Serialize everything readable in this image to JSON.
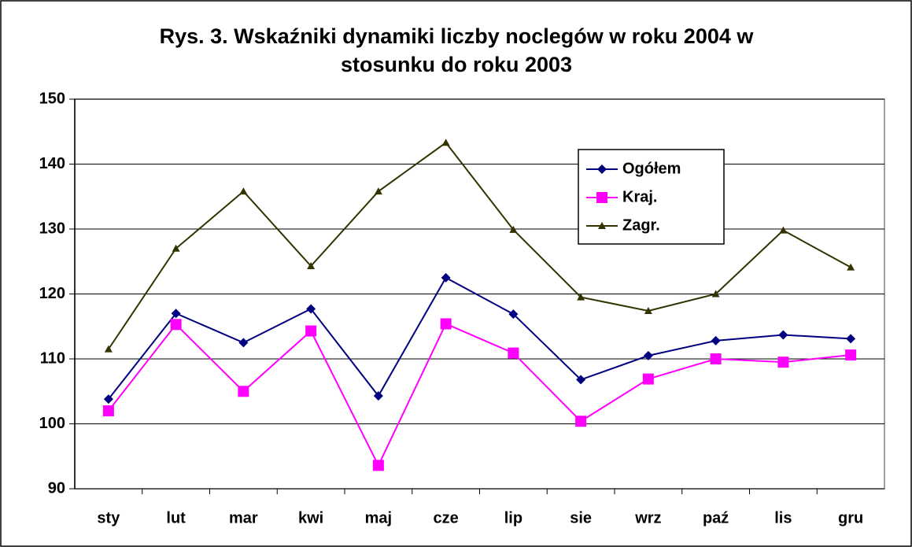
{
  "chart_data": {
    "type": "line",
    "title": "Rys. 3. Wskaźniki dynamiki liczby noclegów w roku 2004 w stosunku do roku 2003",
    "categories": [
      "sty",
      "lut",
      "mar",
      "kwi",
      "maj",
      "cze",
      "lip",
      "sie",
      "wrz",
      "paź",
      "lis",
      "gru"
    ],
    "series": [
      {
        "name": "Ogółem",
        "color": "#000080",
        "marker": "diamond",
        "values": [
          103.8,
          117,
          112.5,
          117.7,
          104.3,
          122.5,
          116.9,
          106.8,
          110.5,
          112.8,
          113.7,
          113.1
        ]
      },
      {
        "name": "Kraj.",
        "color": "#ff00ff",
        "marker": "square",
        "values": [
          102,
          115.3,
          105,
          114.3,
          93.6,
          115.4,
          110.9,
          100.4,
          106.9,
          110,
          109.5,
          110.6
        ]
      },
      {
        "name": "Zagr.",
        "color": "#333300",
        "marker": "triangle",
        "values": [
          111.5,
          127,
          135.8,
          124.3,
          135.8,
          143.3,
          129.9,
          119.5,
          117.4,
          120,
          129.8,
          124.1
        ]
      }
    ],
    "ylim": [
      90,
      150
    ],
    "yticks": [
      90,
      100,
      110,
      120,
      130,
      140,
      150
    ],
    "grid": true
  }
}
